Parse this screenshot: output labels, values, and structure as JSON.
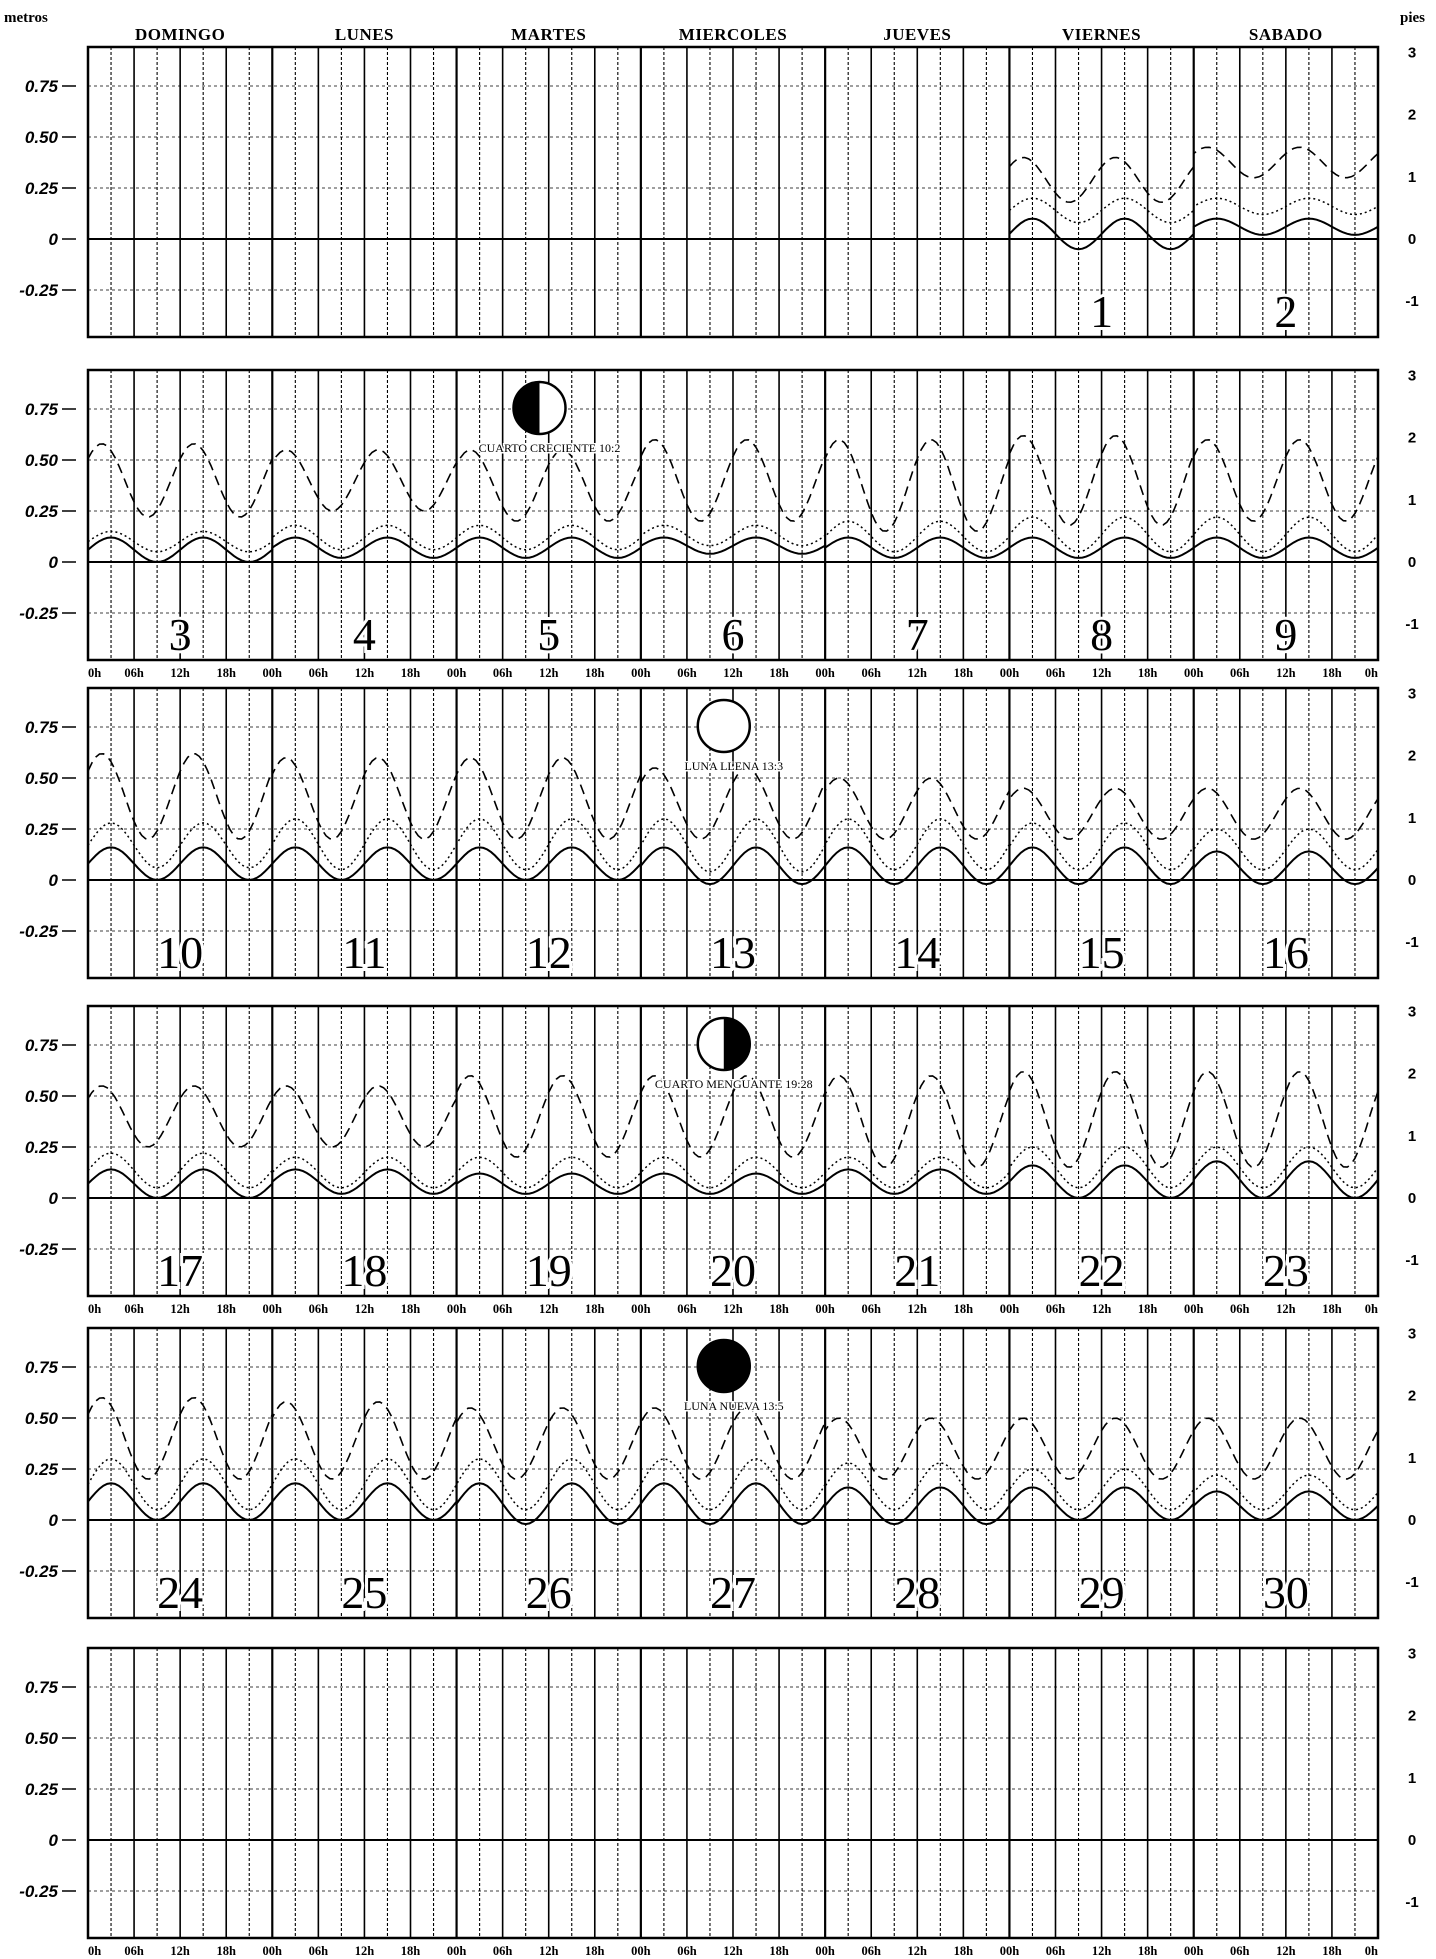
{
  "units": {
    "left": "metros",
    "right": "pies"
  },
  "weekdays": [
    "DOMINGO",
    "LUNES",
    "MARTES",
    "MIERCOLES",
    "JUEVES",
    "VIERNES",
    "SABADO"
  ],
  "hour_labels": [
    "0h",
    "06h",
    "12h",
    "18h",
    "00h",
    "06h",
    "12h",
    "18h",
    "00h",
    "06h",
    "12h",
    "18h",
    "00h",
    "06h",
    "12h",
    "18h",
    "00h",
    "06h",
    "12h",
    "18h",
    "00h",
    "06h",
    "12h",
    "18h",
    "00h",
    "06h",
    "12h",
    "18h",
    "0h"
  ],
  "moon_phases": [
    {
      "label": "CUARTO CRECIENTE 10:2",
      "phase": "first-quarter"
    },
    {
      "label": "LUNA LLENA 13:3",
      "phase": "full"
    },
    {
      "label": "CUARTO MENGUANTE 19:28",
      "phase": "last-quarter"
    },
    {
      "label": "LUNA NUEVA 13:5",
      "phase": "new"
    }
  ],
  "chart_data": {
    "type": "line",
    "title": "",
    "xlabel": "",
    "ylabel_left": "metros",
    "ylabel_right": "pies",
    "ylim_left": [
      -0.4,
      0.85
    ],
    "yticks_left": [
      "0.75",
      "0.50",
      "0.25",
      "0",
      "-0.25"
    ],
    "yticks_right": [
      "3",
      "2",
      "1",
      "0",
      "-1"
    ],
    "grid": true,
    "series_styles": [
      {
        "style": "solid"
      },
      {
        "style": "dotted"
      },
      {
        "style": "dashed"
      }
    ],
    "weeks": [
      {
        "dates": [
          null,
          null,
          null,
          null,
          null,
          1,
          2
        ],
        "wave_start_day": 5,
        "moon": null,
        "hours_axis": false
      },
      {
        "dates": [
          3,
          4,
          5,
          6,
          7,
          8,
          9
        ],
        "wave_start_day": 0,
        "moon": {
          "phase_index": 0,
          "day": 2
        },
        "hours_axis": true
      },
      {
        "dates": [
          10,
          11,
          12,
          13,
          14,
          15,
          16
        ],
        "wave_start_day": 0,
        "moon": {
          "phase_index": 1,
          "day": 3
        },
        "hours_axis": false
      },
      {
        "dates": [
          17,
          18,
          19,
          20,
          21,
          22,
          23
        ],
        "wave_start_day": 0,
        "moon": {
          "phase_index": 2,
          "day": 3
        },
        "hours_axis": true
      },
      {
        "dates": [
          24,
          25,
          26,
          27,
          28,
          29,
          30
        ],
        "wave_start_day": 0,
        "moon": {
          "phase_index": 3,
          "day": 3
        },
        "hours_axis": false
      },
      {
        "dates": [
          null,
          null,
          null,
          null,
          null,
          null,
          null
        ],
        "wave_start_day": null,
        "moon": null,
        "hours_axis": true
      }
    ],
    "daily_tide": {
      "1": {
        "solid": {
          "max": 0.1,
          "min": -0.05
        },
        "dotted": {
          "max": 0.2,
          "min": 0.08
        },
        "dashed": {
          "max": 0.4,
          "min": 0.18
        }
      },
      "2": {
        "solid": {
          "max": 0.1,
          "min": 0.02
        },
        "dotted": {
          "max": 0.2,
          "min": 0.12
        },
        "dashed": {
          "max": 0.45,
          "min": 0.3
        }
      },
      "3": {
        "solid": {
          "max": 0.12,
          "min": 0.0
        },
        "dotted": {
          "max": 0.15,
          "min": 0.05
        },
        "dashed": {
          "max": 0.58,
          "min": 0.22
        }
      },
      "4": {
        "solid": {
          "max": 0.12,
          "min": 0.02
        },
        "dotted": {
          "max": 0.18,
          "min": 0.06
        },
        "dashed": {
          "max": 0.55,
          "min": 0.25
        }
      },
      "5": {
        "solid": {
          "max": 0.12,
          "min": 0.02
        },
        "dotted": {
          "max": 0.18,
          "min": 0.06
        },
        "dashed": {
          "max": 0.55,
          "min": 0.2
        }
      },
      "6": {
        "solid": {
          "max": 0.12,
          "min": 0.04
        },
        "dotted": {
          "max": 0.18,
          "min": 0.08
        },
        "dashed": {
          "max": 0.6,
          "min": 0.2
        }
      },
      "7": {
        "solid": {
          "max": 0.12,
          "min": 0.02
        },
        "dotted": {
          "max": 0.2,
          "min": 0.05
        },
        "dashed": {
          "max": 0.6,
          "min": 0.15
        }
      },
      "8": {
        "solid": {
          "max": 0.12,
          "min": 0.02
        },
        "dotted": {
          "max": 0.22,
          "min": 0.05
        },
        "dashed": {
          "max": 0.62,
          "min": 0.18
        }
      },
      "9": {
        "solid": {
          "max": 0.12,
          "min": 0.02
        },
        "dotted": {
          "max": 0.22,
          "min": 0.05
        },
        "dashed": {
          "max": 0.6,
          "min": 0.2
        }
      },
      "10": {
        "solid": {
          "max": 0.16,
          "min": 0.0
        },
        "dotted": {
          "max": 0.28,
          "min": 0.06
        },
        "dashed": {
          "max": 0.62,
          "min": 0.2
        }
      },
      "11": {
        "solid": {
          "max": 0.16,
          "min": 0.0
        },
        "dotted": {
          "max": 0.3,
          "min": 0.05
        },
        "dashed": {
          "max": 0.6,
          "min": 0.2
        }
      },
      "12": {
        "solid": {
          "max": 0.16,
          "min": 0.0
        },
        "dotted": {
          "max": 0.3,
          "min": 0.05
        },
        "dashed": {
          "max": 0.6,
          "min": 0.2
        }
      },
      "13": {
        "solid": {
          "max": 0.16,
          "min": -0.02
        },
        "dotted": {
          "max": 0.3,
          "min": 0.04
        },
        "dashed": {
          "max": 0.55,
          "min": 0.2
        }
      },
      "14": {
        "solid": {
          "max": 0.16,
          "min": -0.02
        },
        "dotted": {
          "max": 0.3,
          "min": 0.05
        },
        "dashed": {
          "max": 0.5,
          "min": 0.2
        }
      },
      "15": {
        "solid": {
          "max": 0.16,
          "min": -0.02
        },
        "dotted": {
          "max": 0.28,
          "min": 0.05
        },
        "dashed": {
          "max": 0.45,
          "min": 0.2
        }
      },
      "16": {
        "solid": {
          "max": 0.14,
          "min": -0.02
        },
        "dotted": {
          "max": 0.25,
          "min": 0.05
        },
        "dashed": {
          "max": 0.45,
          "min": 0.2
        }
      },
      "17": {
        "solid": {
          "max": 0.14,
          "min": 0.0
        },
        "dotted": {
          "max": 0.22,
          "min": 0.05
        },
        "dashed": {
          "max": 0.55,
          "min": 0.25
        }
      },
      "18": {
        "solid": {
          "max": 0.14,
          "min": 0.02
        },
        "dotted": {
          "max": 0.2,
          "min": 0.05
        },
        "dashed": {
          "max": 0.55,
          "min": 0.25
        }
      },
      "19": {
        "solid": {
          "max": 0.12,
          "min": 0.02
        },
        "dotted": {
          "max": 0.2,
          "min": 0.05
        },
        "dashed": {
          "max": 0.6,
          "min": 0.2
        }
      },
      "20": {
        "solid": {
          "max": 0.12,
          "min": 0.02
        },
        "dotted": {
          "max": 0.2,
          "min": 0.05
        },
        "dashed": {
          "max": 0.6,
          "min": 0.2
        }
      },
      "21": {
        "solid": {
          "max": 0.14,
          "min": 0.02
        },
        "dotted": {
          "max": 0.2,
          "min": 0.05
        },
        "dashed": {
          "max": 0.6,
          "min": 0.15
        }
      },
      "22": {
        "solid": {
          "max": 0.16,
          "min": 0.0
        },
        "dotted": {
          "max": 0.25,
          "min": 0.05
        },
        "dashed": {
          "max": 0.62,
          "min": 0.15
        }
      },
      "23": {
        "solid": {
          "max": 0.18,
          "min": 0.0
        },
        "dotted": {
          "max": 0.25,
          "min": 0.05
        },
        "dashed": {
          "max": 0.62,
          "min": 0.15
        }
      },
      "24": {
        "solid": {
          "max": 0.18,
          "min": 0.0
        },
        "dotted": {
          "max": 0.3,
          "min": 0.05
        },
        "dashed": {
          "max": 0.6,
          "min": 0.2
        }
      },
      "25": {
        "solid": {
          "max": 0.18,
          "min": 0.0
        },
        "dotted": {
          "max": 0.3,
          "min": 0.05
        },
        "dashed": {
          "max": 0.58,
          "min": 0.2
        }
      },
      "26": {
        "solid": {
          "max": 0.18,
          "min": -0.02
        },
        "dotted": {
          "max": 0.3,
          "min": 0.05
        },
        "dashed": {
          "max": 0.55,
          "min": 0.2
        }
      },
      "27": {
        "solid": {
          "max": 0.18,
          "min": -0.02
        },
        "dotted": {
          "max": 0.3,
          "min": 0.05
        },
        "dashed": {
          "max": 0.55,
          "min": 0.2
        }
      },
      "28": {
        "solid": {
          "max": 0.16,
          "min": -0.02
        },
        "dotted": {
          "max": 0.28,
          "min": 0.05
        },
        "dashed": {
          "max": 0.5,
          "min": 0.2
        }
      },
      "29": {
        "solid": {
          "max": 0.16,
          "min": 0.0
        },
        "dotted": {
          "max": 0.25,
          "min": 0.05
        },
        "dashed": {
          "max": 0.5,
          "min": 0.2
        }
      },
      "30": {
        "solid": {
          "max": 0.14,
          "min": 0.0
        },
        "dotted": {
          "max": 0.22,
          "min": 0.05
        },
        "dashed": {
          "max": 0.5,
          "min": 0.2
        }
      }
    }
  }
}
